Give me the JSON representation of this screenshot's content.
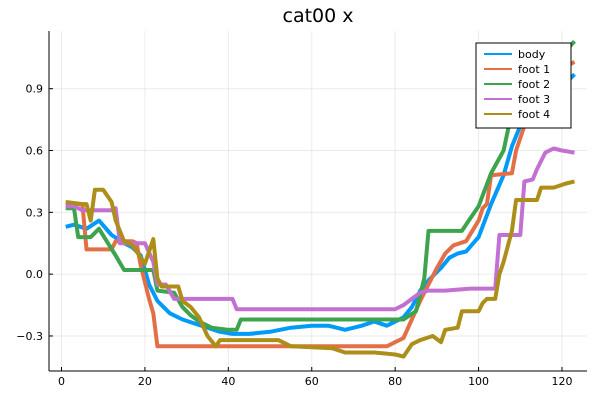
{
  "chart_data": {
    "type": "line",
    "title": "cat00 x",
    "xlabel": "",
    "ylabel": "",
    "xlim": [
      -3,
      126
    ],
    "ylim": [
      -0.47,
      1.18
    ],
    "xticks": [
      0,
      20,
      40,
      60,
      80,
      100,
      120
    ],
    "xtick_labels": [
      "0",
      "20",
      "40",
      "60",
      "80",
      "100",
      "120"
    ],
    "yticks": [
      -0.3,
      0.0,
      0.3,
      0.6,
      0.9
    ],
    "ytick_labels": [
      "−0.3",
      "0.0",
      "0.3",
      "0.6",
      "0.9"
    ],
    "grid": true,
    "legend": "top-right",
    "series": [
      {
        "name": "body",
        "color": "#009af9",
        "points": [
          [
            1,
            0.23
          ],
          [
            3,
            0.24
          ],
          [
            6,
            0.22
          ],
          [
            9,
            0.26
          ],
          [
            12,
            0.19
          ],
          [
            15,
            0.15
          ],
          [
            17,
            0.13
          ],
          [
            19,
            0.09
          ],
          [
            21,
            -0.05
          ],
          [
            23,
            -0.13
          ],
          [
            26,
            -0.19
          ],
          [
            29,
            -0.22
          ],
          [
            32,
            -0.24
          ],
          [
            35,
            -0.26
          ],
          [
            38,
            -0.28
          ],
          [
            41,
            -0.29
          ],
          [
            45,
            -0.29
          ],
          [
            50,
            -0.28
          ],
          [
            55,
            -0.26
          ],
          [
            60,
            -0.25
          ],
          [
            64,
            -0.25
          ],
          [
            68,
            -0.27
          ],
          [
            72,
            -0.25
          ],
          [
            75,
            -0.23
          ],
          [
            78,
            -0.25
          ],
          [
            82,
            -0.21
          ],
          [
            84,
            -0.16
          ],
          [
            86,
            -0.08
          ],
          [
            88,
            -0.03
          ],
          [
            91,
            0.03
          ],
          [
            93,
            0.08
          ],
          [
            95,
            0.1
          ],
          [
            97,
            0.11
          ],
          [
            100,
            0.18
          ],
          [
            103,
            0.34
          ],
          [
            106,
            0.48
          ],
          [
            108,
            0.62
          ],
          [
            110,
            0.72
          ],
          [
            112,
            0.78
          ],
          [
            115,
            0.82
          ],
          [
            118,
            0.86
          ],
          [
            121,
            0.93
          ],
          [
            123,
            0.97
          ]
        ]
      },
      {
        "name": "foot 1",
        "color": "#e26f46",
        "points": [
          [
            1,
            0.34
          ],
          [
            3,
            0.34
          ],
          [
            5,
            0.34
          ],
          [
            6,
            0.12
          ],
          [
            12,
            0.12
          ],
          [
            13,
            0.16
          ],
          [
            17,
            0.16
          ],
          [
            18,
            0.15
          ],
          [
            19,
            0.04
          ],
          [
            21,
            -0.12
          ],
          [
            22,
            -0.19
          ],
          [
            23,
            -0.35
          ],
          [
            35,
            -0.35
          ],
          [
            50,
            -0.35
          ],
          [
            65,
            -0.35
          ],
          [
            78,
            -0.35
          ],
          [
            82,
            -0.31
          ],
          [
            84,
            -0.22
          ],
          [
            86,
            -0.13
          ],
          [
            88,
            -0.05
          ],
          [
            90,
            0.03
          ],
          [
            92,
            0.1
          ],
          [
            94,
            0.14
          ],
          [
            97,
            0.16
          ],
          [
            100,
            0.26
          ],
          [
            101,
            0.32
          ],
          [
            102,
            0.34
          ],
          [
            103,
            0.48
          ],
          [
            108,
            0.49
          ],
          [
            109,
            0.6
          ],
          [
            111,
            0.72
          ],
          [
            113,
            0.85
          ],
          [
            116,
            0.96
          ],
          [
            120,
            1.0
          ],
          [
            123,
            1.03
          ]
        ]
      },
      {
        "name": "foot 2",
        "color": "#3da44d",
        "points": [
          [
            1,
            0.32
          ],
          [
            3,
            0.32
          ],
          [
            4,
            0.18
          ],
          [
            7,
            0.18
          ],
          [
            9,
            0.22
          ],
          [
            13,
            0.09
          ],
          [
            15,
            0.02
          ],
          [
            22,
            0.02
          ],
          [
            23,
            -0.08
          ],
          [
            27,
            -0.09
          ],
          [
            29,
            -0.16
          ],
          [
            31,
            -0.2
          ],
          [
            33,
            -0.23
          ],
          [
            36,
            -0.26
          ],
          [
            40,
            -0.27
          ],
          [
            42,
            -0.27
          ],
          [
            43,
            -0.22
          ],
          [
            55,
            -0.22
          ],
          [
            70,
            -0.22
          ],
          [
            82,
            -0.22
          ],
          [
            85,
            -0.18
          ],
          [
            87,
            -0.02
          ],
          [
            88,
            0.21
          ],
          [
            96,
            0.21
          ],
          [
            98,
            0.27
          ],
          [
            100,
            0.33
          ],
          [
            103,
            0.49
          ],
          [
            106,
            0.6
          ],
          [
            108,
            0.79
          ],
          [
            110,
            0.9
          ],
          [
            114,
            0.96
          ],
          [
            118,
            1.02
          ],
          [
            123,
            1.13
          ]
        ]
      },
      {
        "name": "foot 3",
        "color": "#c271d2",
        "points": [
          [
            1,
            0.33
          ],
          [
            3,
            0.33
          ],
          [
            5,
            0.31
          ],
          [
            12,
            0.31
          ],
          [
            13,
            0.32
          ],
          [
            14,
            0.15
          ],
          [
            18,
            0.15
          ],
          [
            20,
            0.15
          ],
          [
            22,
            0.06
          ],
          [
            23,
            -0.05
          ],
          [
            25,
            -0.05
          ],
          [
            27,
            -0.12
          ],
          [
            41,
            -0.12
          ],
          [
            42,
            -0.17
          ],
          [
            60,
            -0.17
          ],
          [
            80,
            -0.17
          ],
          [
            82,
            -0.15
          ],
          [
            84,
            -0.12
          ],
          [
            86,
            -0.09
          ],
          [
            88,
            -0.08
          ],
          [
            92,
            -0.08
          ],
          [
            98,
            -0.07
          ],
          [
            104,
            -0.07
          ],
          [
            105,
            0.19
          ],
          [
            110,
            0.19
          ],
          [
            111,
            0.45
          ],
          [
            113,
            0.46
          ],
          [
            114,
            0.51
          ],
          [
            116,
            0.59
          ],
          [
            118,
            0.61
          ],
          [
            120,
            0.6
          ],
          [
            123,
            0.59
          ]
        ]
      },
      {
        "name": "foot 4",
        "color": "#ac8e18",
        "points": [
          [
            1,
            0.35
          ],
          [
            5,
            0.34
          ],
          [
            6,
            0.34
          ],
          [
            7,
            0.26
          ],
          [
            8,
            0.41
          ],
          [
            10,
            0.41
          ],
          [
            12,
            0.35
          ],
          [
            13,
            0.26
          ],
          [
            15,
            0.16
          ],
          [
            17,
            0.14
          ],
          [
            19,
            0.08
          ],
          [
            20,
            0.05
          ],
          [
            22,
            0.17
          ],
          [
            23,
            -0.02
          ],
          [
            24,
            -0.06
          ],
          [
            28,
            -0.06
          ],
          [
            29,
            -0.13
          ],
          [
            31,
            -0.16
          ],
          [
            33,
            -0.21
          ],
          [
            35,
            -0.3
          ],
          [
            37,
            -0.35
          ],
          [
            38,
            -0.32
          ],
          [
            52,
            -0.32
          ],
          [
            55,
            -0.35
          ],
          [
            65,
            -0.36
          ],
          [
            68,
            -0.38
          ],
          [
            72,
            -0.38
          ],
          [
            75,
            -0.38
          ],
          [
            80,
            -0.39
          ],
          [
            82,
            -0.4
          ],
          [
            84,
            -0.34
          ],
          [
            86,
            -0.32
          ],
          [
            89,
            -0.3
          ],
          [
            91,
            -0.33
          ],
          [
            92,
            -0.27
          ],
          [
            95,
            -0.26
          ],
          [
            96,
            -0.18
          ],
          [
            100,
            -0.18
          ],
          [
            101,
            -0.14
          ],
          [
            102,
            -0.12
          ],
          [
            104,
            -0.12
          ],
          [
            105,
            0.0
          ],
          [
            106,
            0.06
          ],
          [
            108,
            0.21
          ],
          [
            109,
            0.36
          ],
          [
            114,
            0.36
          ],
          [
            115,
            0.42
          ],
          [
            118,
            0.42
          ],
          [
            121,
            0.44
          ],
          [
            123,
            0.45
          ]
        ]
      }
    ]
  }
}
